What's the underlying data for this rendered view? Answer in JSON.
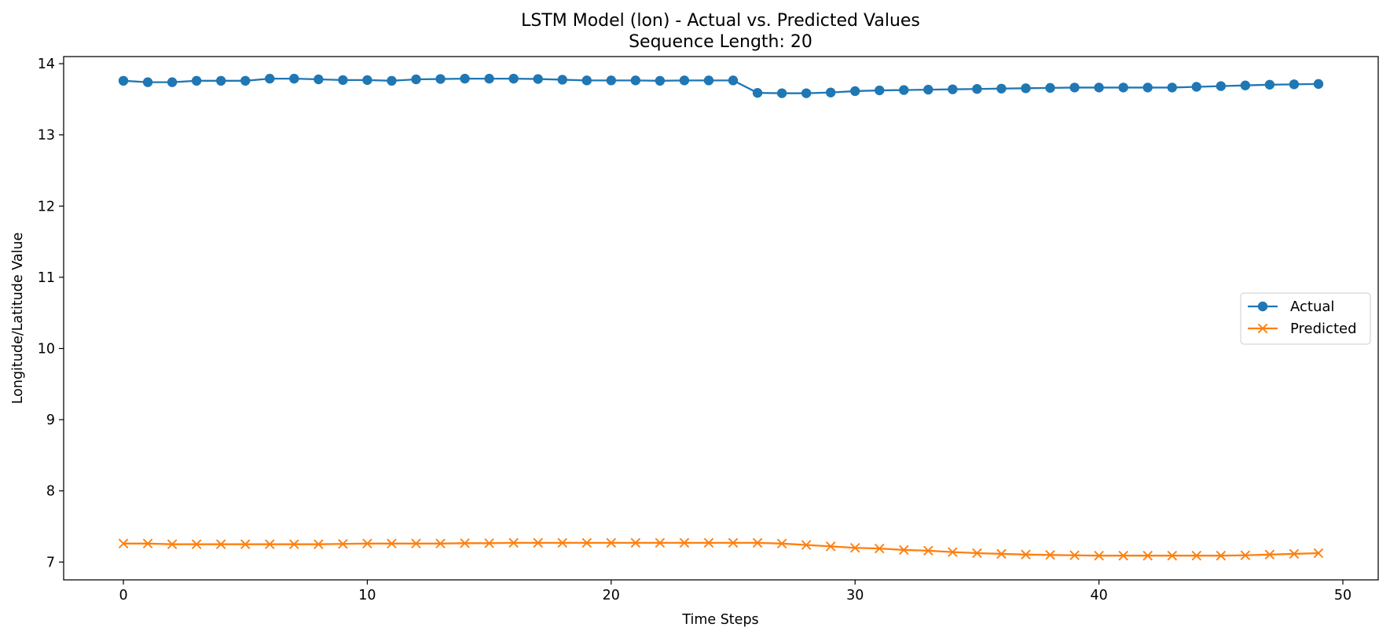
{
  "chart_data": {
    "type": "line",
    "title": "LSTM Model (lon) - Actual vs. Predicted Values",
    "subtitle": "Sequence Length: 20",
    "xlabel": "Time Steps",
    "ylabel": "Longitude/Latitude Value",
    "xlim": [
      -2.45,
      51.45
    ],
    "ylim": [
      6.75,
      14.1
    ],
    "xticks": [
      0,
      10,
      20,
      30,
      40,
      50
    ],
    "yticks": [
      7,
      8,
      9,
      10,
      11,
      12,
      13,
      14
    ],
    "grid": false,
    "legend_position": "center-right",
    "x": [
      0,
      1,
      2,
      3,
      4,
      5,
      6,
      7,
      8,
      9,
      10,
      11,
      12,
      13,
      14,
      15,
      16,
      17,
      18,
      19,
      20,
      21,
      22,
      23,
      24,
      25,
      26,
      27,
      28,
      29,
      30,
      31,
      32,
      33,
      34,
      35,
      36,
      37,
      38,
      39,
      40,
      41,
      42,
      43,
      44,
      45,
      46,
      47,
      48,
      49
    ],
    "series": [
      {
        "name": "Actual",
        "color": "#1f77b4",
        "marker": "circle",
        "values": [
          13.76,
          13.74,
          13.74,
          13.76,
          13.76,
          13.76,
          13.79,
          13.79,
          13.78,
          13.77,
          13.77,
          13.76,
          13.78,
          13.785,
          13.79,
          13.79,
          13.79,
          13.785,
          13.775,
          13.765,
          13.765,
          13.765,
          13.76,
          13.765,
          13.765,
          13.765,
          13.59,
          13.585,
          13.585,
          13.595,
          13.615,
          13.625,
          13.63,
          13.635,
          13.64,
          13.645,
          13.65,
          13.655,
          13.66,
          13.665,
          13.665,
          13.665,
          13.665,
          13.665,
          13.675,
          13.685,
          13.695,
          13.705,
          13.71,
          13.715
        ]
      },
      {
        "name": "Predicted",
        "color": "#ff7f0e",
        "marker": "x",
        "values": [
          7.26,
          7.26,
          7.25,
          7.25,
          7.25,
          7.25,
          7.25,
          7.25,
          7.25,
          7.255,
          7.26,
          7.26,
          7.26,
          7.26,
          7.265,
          7.265,
          7.27,
          7.27,
          7.27,
          7.27,
          7.27,
          7.27,
          7.27,
          7.27,
          7.27,
          7.27,
          7.27,
          7.26,
          7.24,
          7.22,
          7.2,
          7.19,
          7.17,
          7.16,
          7.14,
          7.125,
          7.115,
          7.105,
          7.1,
          7.095,
          7.09,
          7.09,
          7.09,
          7.09,
          7.09,
          7.09,
          7.095,
          7.105,
          7.115,
          7.125
        ]
      }
    ]
  }
}
